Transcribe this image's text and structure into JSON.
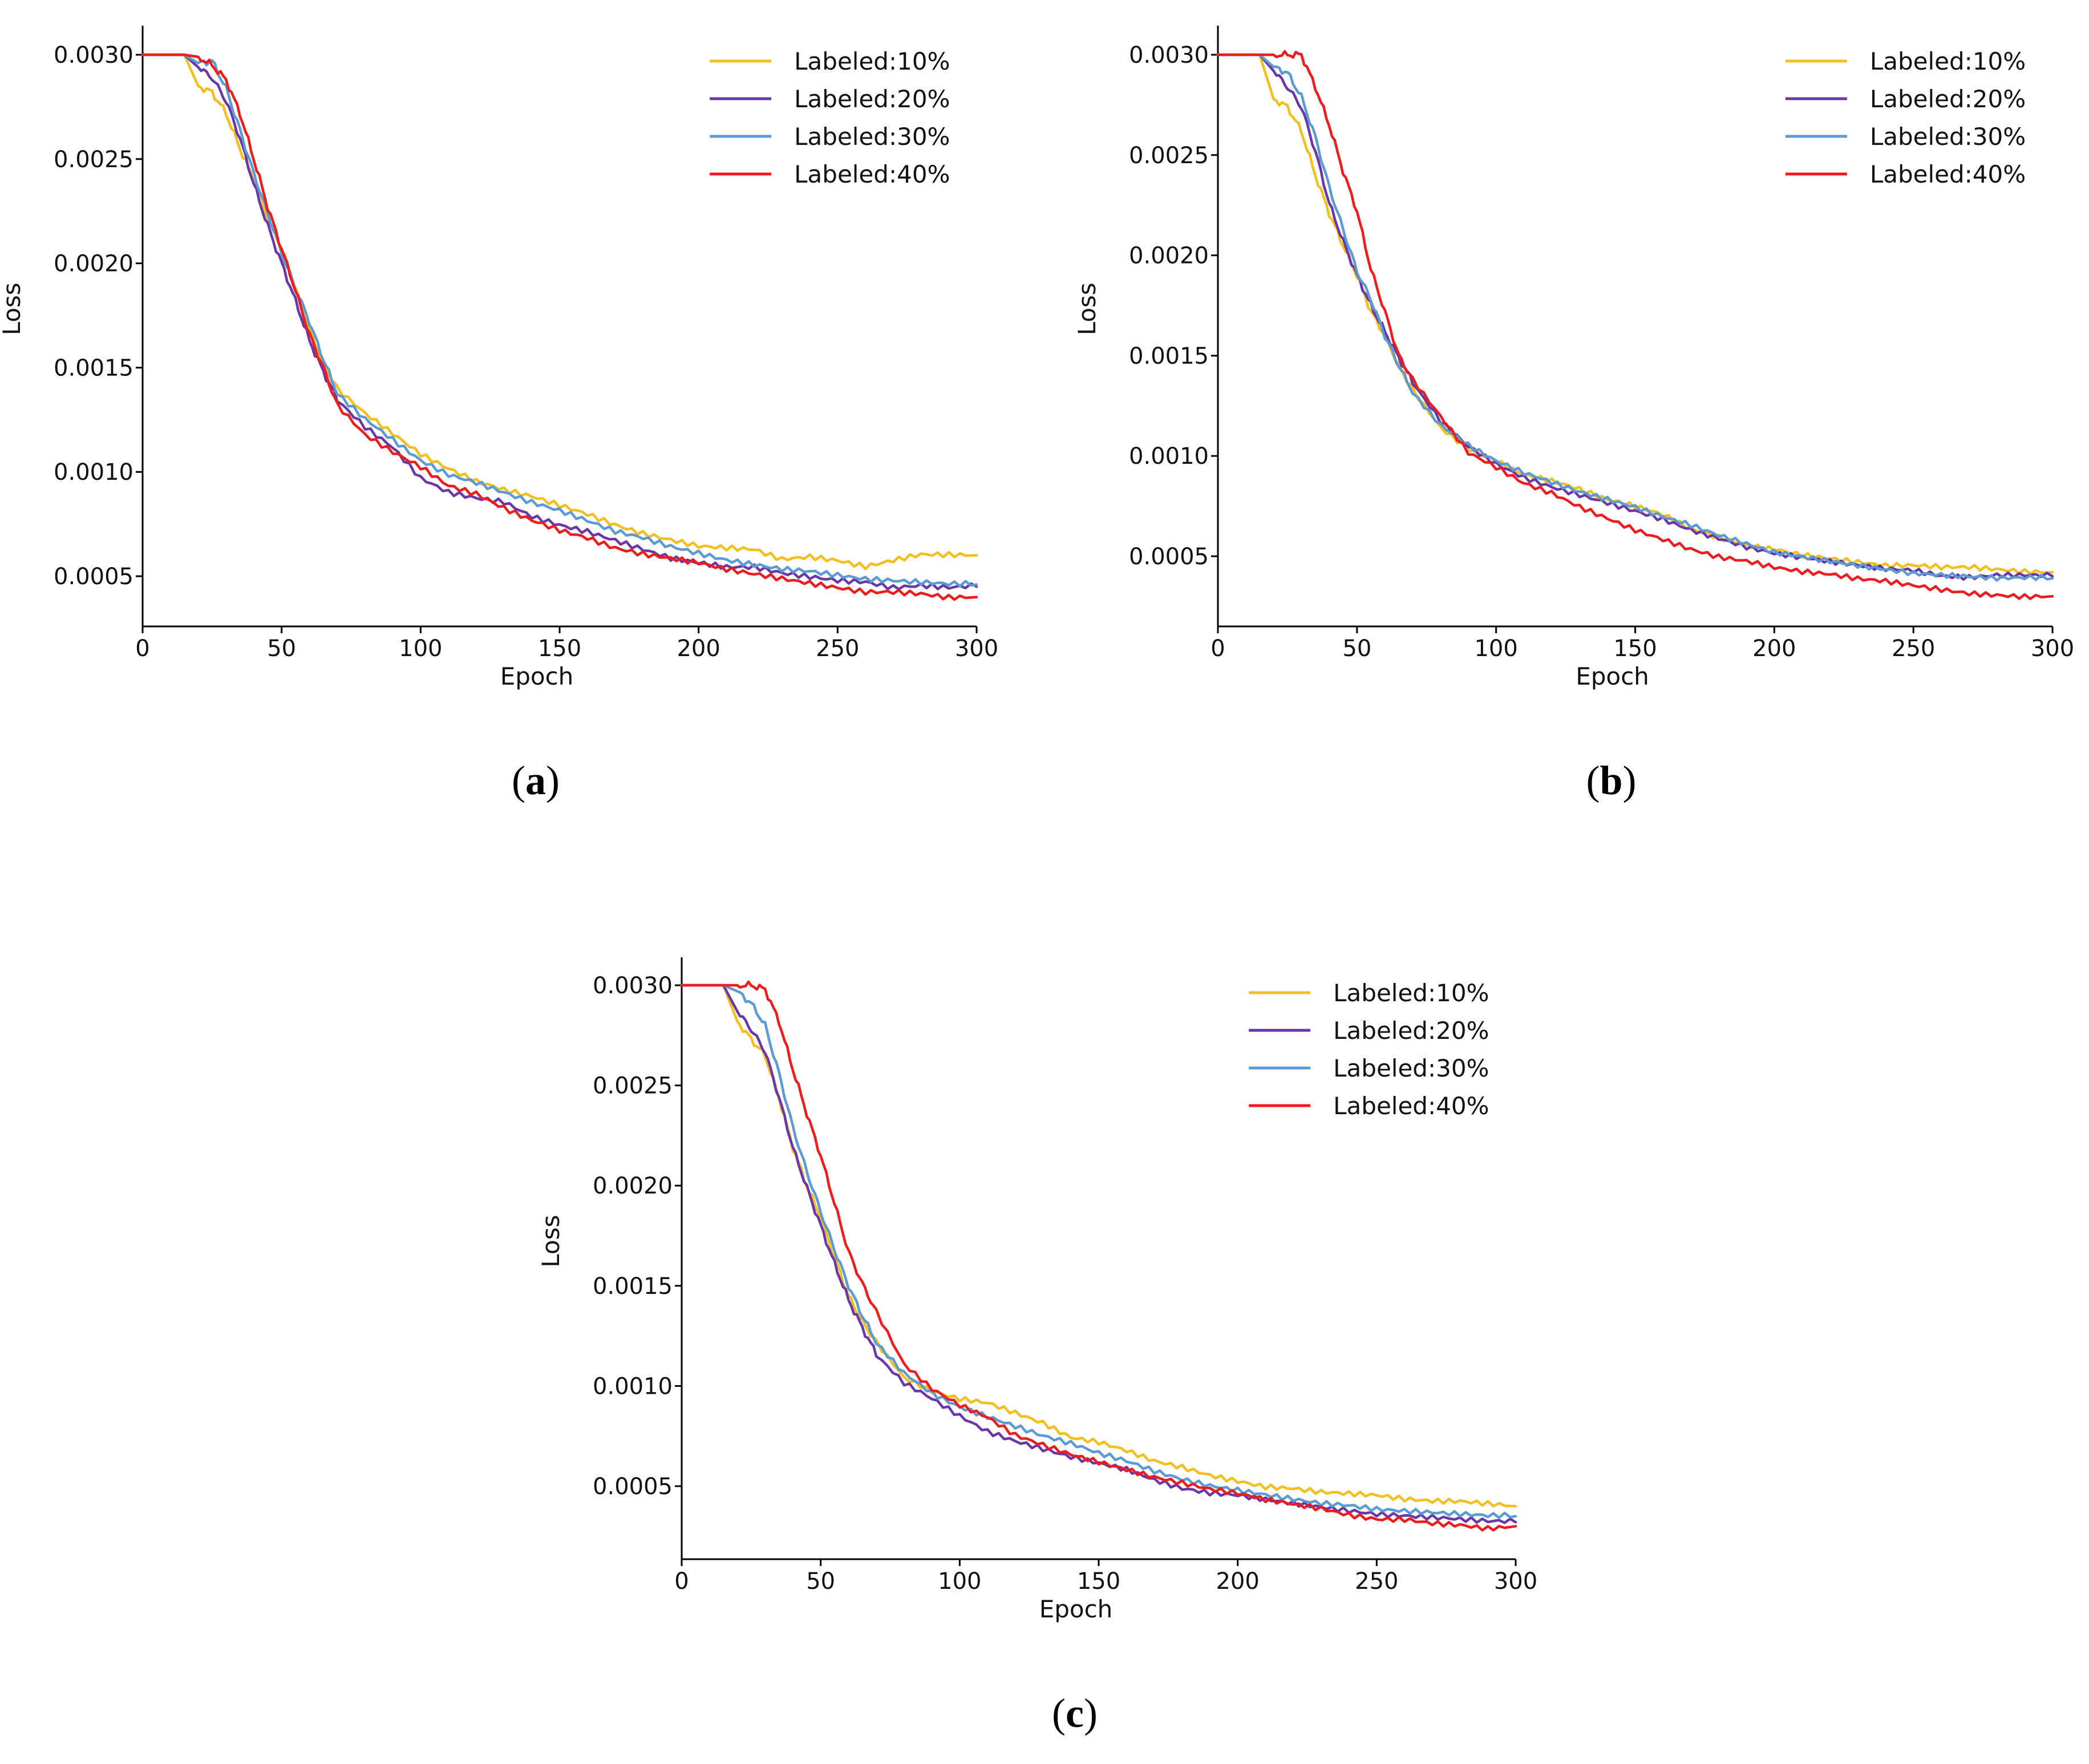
{
  "colors": {
    "Labeled:10%": "#f2bf1f",
    "Labeled:20%": "#6a36a8",
    "Labeled:30%": "#5b9bd5",
    "Labeled:40%": "#ee1c1c"
  },
  "chart_data": [
    {
      "type": "line",
      "panel": "a",
      "caption_letter": "a",
      "xlabel": "Epoch",
      "ylabel": "Loss",
      "xlim": [
        0,
        300
      ],
      "ylim": [
        0.00025,
        0.00315
      ],
      "xticks": [
        0,
        50,
        100,
        150,
        200,
        250,
        300
      ],
      "xtick_labels": [
        "0",
        "50",
        "100",
        "150",
        "200",
        "250",
        "300"
      ],
      "yticks": [
        0.0005,
        0.001,
        0.0015,
        0.002,
        0.0025,
        0.003
      ],
      "ytick_labels": [
        "0.0005",
        "0.0010",
        "0.0015",
        "0.0020",
        "0.0025",
        "0.0030"
      ],
      "legend_position": "top-right",
      "x": [
        0,
        15,
        20,
        25,
        30,
        35,
        40,
        45,
        50,
        55,
        60,
        65,
        70,
        80,
        90,
        100,
        110,
        120,
        130,
        140,
        150,
        160,
        170,
        180,
        190,
        200,
        210,
        220,
        230,
        240,
        250,
        260,
        270,
        280,
        290,
        300
      ],
      "series": [
        {
          "name": "Labeled:10%",
          "values": [
            0.003,
            0.003,
            0.00285,
            0.00282,
            0.00272,
            0.00255,
            0.0024,
            0.00222,
            0.00207,
            0.00188,
            0.00168,
            0.00152,
            0.0014,
            0.00128,
            0.00118,
            0.00108,
            0.00101,
            0.00095,
            0.00091,
            0.00088,
            0.00084,
            0.0008,
            0.00075,
            0.00071,
            0.00068,
            0.00065,
            0.00064,
            0.00063,
            0.00058,
            0.00059,
            0.00057,
            0.00054,
            0.00057,
            0.0006,
            0.0006,
            0.0006
          ]
        },
        {
          "name": "Labeled:20%",
          "values": [
            0.003,
            0.003,
            0.00294,
            0.00289,
            0.00278,
            0.0026,
            0.00238,
            0.00218,
            0.002,
            0.00182,
            0.00163,
            0.00148,
            0.00135,
            0.00122,
            0.00112,
            0.00097,
            0.0009,
            0.00087,
            0.00085,
            0.00078,
            0.00074,
            0.00071,
            0.00067,
            0.00063,
            0.00059,
            0.00057,
            0.00055,
            0.00055,
            0.00052,
            0.0005,
            0.00048,
            0.00047,
            0.00044,
            0.00045,
            0.00044,
            0.00045
          ]
        },
        {
          "name": "Labeled:30%",
          "values": [
            0.003,
            0.003,
            0.00296,
            0.00297,
            0.00284,
            0.00264,
            0.00243,
            0.00224,
            0.00205,
            0.00188,
            0.00172,
            0.00154,
            0.00138,
            0.00126,
            0.00116,
            0.00106,
            0.00099,
            0.00095,
            0.0009,
            0.00085,
            0.00081,
            0.00076,
            0.00071,
            0.00068,
            0.00064,
            0.00061,
            0.00058,
            0.00056,
            0.00054,
            0.00053,
            0.00051,
            0.00049,
            0.00048,
            0.00047,
            0.00046,
            0.00046
          ]
        },
        {
          "name": "Labeled:40%",
          "values": [
            0.003,
            0.003,
            0.00299,
            0.00295,
            0.00288,
            0.00272,
            0.0025,
            0.00227,
            0.00207,
            0.00187,
            0.00166,
            0.0015,
            0.00132,
            0.00118,
            0.0011,
            0.00103,
            0.00094,
            0.0009,
            0.00083,
            0.00077,
            0.00072,
            0.00068,
            0.00063,
            0.0006,
            0.00058,
            0.00056,
            0.00053,
            0.00051,
            0.00049,
            0.00047,
            0.00045,
            0.00043,
            0.00043,
            0.00042,
            0.0004,
            0.0004
          ]
        }
      ]
    },
    {
      "type": "line",
      "panel": "b",
      "caption_letter": "b",
      "xlabel": "Epoch",
      "ylabel": "Loss",
      "xlim": [
        0,
        300
      ],
      "ylim": [
        0.00015,
        0.00315
      ],
      "xticks": [
        0,
        50,
        100,
        150,
        200,
        250,
        300
      ],
      "xtick_labels": [
        "0",
        "50",
        "100",
        "150",
        "200",
        "250",
        "300"
      ],
      "yticks": [
        0.0005,
        0.001,
        0.0015,
        0.002,
        0.0025,
        0.003
      ],
      "ytick_labels": [
        "0.0005",
        "0.0010",
        "0.0015",
        "0.0020",
        "0.0025",
        "0.0030"
      ],
      "legend_position": "top-right",
      "x": [
        0,
        15,
        20,
        25,
        30,
        35,
        40,
        45,
        50,
        55,
        60,
        65,
        70,
        80,
        90,
        100,
        110,
        120,
        130,
        140,
        150,
        160,
        170,
        180,
        190,
        200,
        210,
        220,
        230,
        240,
        250,
        260,
        270,
        280,
        290,
        300
      ],
      "series": [
        {
          "name": "Labeled:10%",
          "values": [
            0.003,
            0.003,
            0.00278,
            0.00274,
            0.00262,
            0.0024,
            0.00221,
            0.00205,
            0.0019,
            0.00172,
            0.0016,
            0.00145,
            0.00133,
            0.00114,
            0.00103,
            0.00097,
            0.0009,
            0.00087,
            0.00083,
            0.00078,
            0.00075,
            0.00071,
            0.00064,
            0.0006,
            0.00056,
            0.00054,
            0.00051,
            0.00049,
            0.00047,
            0.00045,
            0.00045,
            0.00044,
            0.00044,
            0.00043,
            0.00042,
            0.00042
          ]
        },
        {
          "name": "Labeled:20%",
          "values": [
            0.003,
            0.003,
            0.00292,
            0.00284,
            0.00274,
            0.00252,
            0.00226,
            0.00207,
            0.0019,
            0.00175,
            0.00162,
            0.00149,
            0.00137,
            0.00118,
            0.00105,
            0.00096,
            0.00089,
            0.00084,
            0.0008,
            0.00076,
            0.00072,
            0.00068,
            0.00063,
            0.00059,
            0.00055,
            0.00052,
            0.0005,
            0.00048,
            0.00046,
            0.00044,
            0.00043,
            0.0004,
            0.00039,
            0.0004,
            0.0004,
            0.0004
          ]
        },
        {
          "name": "Labeled:30%",
          "values": [
            0.003,
            0.003,
            0.00294,
            0.00291,
            0.00279,
            0.00259,
            0.00234,
            0.00213,
            0.00192,
            0.00178,
            0.0016,
            0.00145,
            0.00132,
            0.00116,
            0.00106,
            0.00098,
            0.00092,
            0.00087,
            0.00082,
            0.00078,
            0.00074,
            0.00069,
            0.00065,
            0.0006,
            0.00056,
            0.00052,
            0.0005,
            0.00048,
            0.00046,
            0.00044,
            0.00042,
            0.00041,
            0.0004,
            0.00039,
            0.00039,
            0.00039
          ]
        },
        {
          "name": "Labeled:40%",
          "values": [
            0.003,
            0.003,
            0.003,
            0.003,
            0.003,
            0.00284,
            0.00265,
            0.00242,
            0.00222,
            0.00193,
            0.00172,
            0.0015,
            0.00138,
            0.0012,
            0.00102,
            0.00095,
            0.00087,
            0.00082,
            0.00075,
            0.00069,
            0.00063,
            0.00058,
            0.00053,
            0.00049,
            0.00047,
            0.00044,
            0.00042,
            0.00041,
            0.00039,
            0.00038,
            0.00036,
            0.00034,
            0.00032,
            0.00031,
            0.0003,
            0.0003
          ]
        }
      ]
    },
    {
      "type": "line",
      "panel": "c",
      "caption_letter": "c",
      "xlabel": "Epoch",
      "ylabel": "Loss",
      "xlim": [
        0,
        300
      ],
      "ylim": [
        0.00015,
        0.00315
      ],
      "xticks": [
        0,
        50,
        100,
        150,
        200,
        250,
        300
      ],
      "xtick_labels": [
        "0",
        "50",
        "100",
        "150",
        "200",
        "250",
        "300"
      ],
      "yticks": [
        0.0005,
        0.001,
        0.0015,
        0.002,
        0.0025,
        0.003
      ],
      "ytick_labels": [
        "0.0005",
        "0.0010",
        "0.0015",
        "0.0020",
        "0.0025",
        "0.0030"
      ],
      "legend_position": "top-right",
      "x": [
        0,
        15,
        20,
        25,
        30,
        35,
        40,
        45,
        50,
        55,
        60,
        65,
        70,
        80,
        90,
        100,
        110,
        120,
        130,
        140,
        150,
        160,
        170,
        180,
        190,
        200,
        210,
        220,
        230,
        240,
        250,
        260,
        270,
        280,
        290,
        300
      ],
      "series": [
        {
          "name": "Labeled:10%",
          "values": [
            0.003,
            0.003,
            0.00282,
            0.00273,
            0.00265,
            0.00244,
            0.00219,
            0.002,
            0.00184,
            0.00164,
            0.00145,
            0.00132,
            0.00122,
            0.00104,
            0.00097,
            0.00093,
            0.00091,
            0.00086,
            0.00081,
            0.00074,
            0.00072,
            0.00068,
            0.00063,
            0.0006,
            0.00056,
            0.00053,
            0.0005,
            0.00049,
            0.00047,
            0.00046,
            0.00045,
            0.00043,
            0.00042,
            0.00042,
            0.00041,
            0.0004
          ]
        },
        {
          "name": "Labeled:20%",
          "values": [
            0.003,
            0.003,
            0.00287,
            0.00278,
            0.00267,
            0.00244,
            0.00219,
            0.00199,
            0.0018,
            0.00161,
            0.00143,
            0.00129,
            0.00116,
            0.00102,
            0.00094,
            0.00085,
            0.00077,
            0.00072,
            0.00068,
            0.00064,
            0.00061,
            0.00058,
            0.00053,
            0.00049,
            0.00047,
            0.00046,
            0.00044,
            0.00042,
            0.0004,
            0.00038,
            0.00036,
            0.00035,
            0.00034,
            0.00033,
            0.00032,
            0.00032
          ]
        },
        {
          "name": "Labeled:30%",
          "values": [
            0.003,
            0.003,
            0.00297,
            0.00291,
            0.0028,
            0.00256,
            0.00229,
            0.00207,
            0.00187,
            0.00168,
            0.0015,
            0.00135,
            0.00122,
            0.00107,
            0.00097,
            0.0009,
            0.00085,
            0.0008,
            0.00075,
            0.00071,
            0.00066,
            0.00062,
            0.00057,
            0.00053,
            0.0005,
            0.00048,
            0.00046,
            0.00044,
            0.00042,
            0.00041,
            0.00039,
            0.00038,
            0.00037,
            0.00036,
            0.00035,
            0.00035
          ]
        },
        {
          "name": "Labeled:40%",
          "values": [
            0.003,
            0.003,
            0.003,
            0.003,
            0.00298,
            0.00282,
            0.00258,
            0.00236,
            0.00215,
            0.00191,
            0.00167,
            0.00151,
            0.00137,
            0.00111,
            0.00099,
            0.00091,
            0.00085,
            0.00076,
            0.00071,
            0.00066,
            0.00062,
            0.00058,
            0.00054,
            0.00051,
            0.00048,
            0.00046,
            0.00043,
            0.00041,
            0.00039,
            0.00036,
            0.00034,
            0.00034,
            0.00032,
            0.00031,
            0.00029,
            0.0003
          ]
        }
      ]
    }
  ]
}
